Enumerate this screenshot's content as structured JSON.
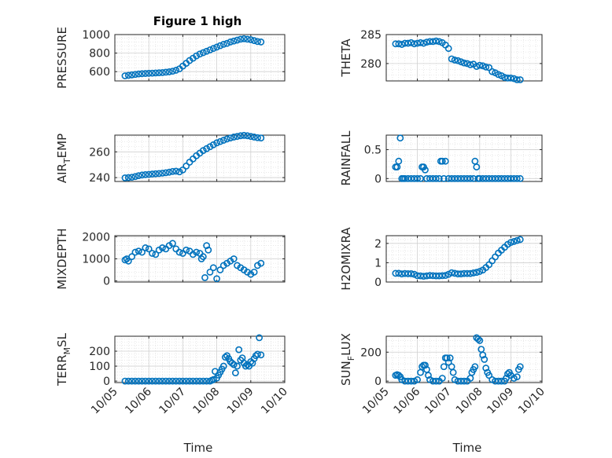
{
  "figure": {
    "title": "Figure 1 high",
    "xlabel": "Time",
    "x_ticks": [
      "10/05",
      "10/06",
      "10/07",
      "10/08",
      "10/09",
      "10/10"
    ],
    "marker_color": "#0072BD",
    "grid": true,
    "grid_minor": true
  },
  "chart_data": [
    {
      "id": "pressure",
      "type": "scatter",
      "ylabel": "PRESSURE",
      "ylim": [
        500,
        1000
      ],
      "yticks": [
        600,
        800,
        1000
      ],
      "xlim": [
        5.0,
        10.0
      ],
      "x": [
        5.3,
        5.4,
        5.5,
        5.6,
        5.7,
        5.8,
        5.9,
        6.0,
        6.1,
        6.2,
        6.3,
        6.4,
        6.5,
        6.6,
        6.7,
        6.8,
        6.9,
        7.0,
        7.1,
        7.2,
        7.3,
        7.4,
        7.5,
        7.6,
        7.7,
        7.8,
        7.9,
        8.0,
        8.1,
        8.2,
        8.3,
        8.4,
        8.5,
        8.6,
        8.7,
        8.8,
        8.9,
        9.0,
        9.1,
        9.2,
        9.3
      ],
      "y": [
        555,
        560,
        565,
        570,
        575,
        578,
        580,
        582,
        584,
        586,
        588,
        590,
        594,
        598,
        605,
        615,
        630,
        660,
        690,
        720,
        745,
        770,
        790,
        805,
        820,
        835,
        850,
        865,
        880,
        895,
        905,
        920,
        930,
        940,
        950,
        955,
        950,
        945,
        935,
        925,
        920
      ]
    },
    {
      "id": "theta",
      "type": "scatter",
      "ylabel": "THETA",
      "ylim": [
        277,
        285
      ],
      "yticks": [
        280,
        285
      ],
      "xlim": [
        5.0,
        10.0
      ],
      "x": [
        5.3,
        5.4,
        5.5,
        5.6,
        5.7,
        5.8,
        5.9,
        6.0,
        6.1,
        6.2,
        6.3,
        6.4,
        6.5,
        6.6,
        6.7,
        6.8,
        6.9,
        7.0,
        7.1,
        7.2,
        7.3,
        7.4,
        7.5,
        7.6,
        7.7,
        7.8,
        7.9,
        8.0,
        8.1,
        8.2,
        8.3,
        8.4,
        8.5,
        8.6,
        8.7,
        8.8,
        8.9,
        9.0,
        9.1,
        9.2,
        9.3
      ],
      "y": [
        283.4,
        283.4,
        283.3,
        283.5,
        283.5,
        283.6,
        283.4,
        283.5,
        283.6,
        283.5,
        283.7,
        283.8,
        283.8,
        283.9,
        283.8,
        283.6,
        283.2,
        282.6,
        280.8,
        280.6,
        280.5,
        280.3,
        280.1,
        280.0,
        279.8,
        279.9,
        279.5,
        279.7,
        279.6,
        279.4,
        279.3,
        278.6,
        278.4,
        278.1,
        277.9,
        277.6,
        277.5,
        277.5,
        277.4,
        277.2,
        277.2
      ]
    },
    {
      "id": "air_temp",
      "type": "scatter",
      "ylabel": "AIR_TEMP",
      "ylim": [
        237,
        273
      ],
      "yticks": [
        240,
        260
      ],
      "xlim": [
        5.0,
        10.0
      ],
      "x": [
        5.3,
        5.4,
        5.5,
        5.6,
        5.7,
        5.8,
        5.9,
        6.0,
        6.1,
        6.2,
        6.3,
        6.4,
        6.5,
        6.6,
        6.7,
        6.8,
        6.9,
        7.0,
        7.1,
        7.2,
        7.3,
        7.4,
        7.5,
        7.6,
        7.7,
        7.8,
        7.9,
        8.0,
        8.1,
        8.2,
        8.3,
        8.4,
        8.5,
        8.6,
        8.7,
        8.8,
        8.9,
        9.0,
        9.1,
        9.2,
        9.3
      ],
      "y": [
        239.8,
        240.0,
        240.3,
        240.8,
        241.5,
        242.0,
        242.3,
        242.5,
        242.8,
        243.0,
        243.2,
        243.5,
        243.8,
        244.2,
        244.8,
        245.0,
        244.5,
        246.0,
        249.0,
        252.0,
        254.5,
        257.0,
        259.0,
        261.0,
        262.5,
        264.0,
        265.5,
        267.0,
        268.0,
        269.0,
        270.0,
        270.8,
        271.5,
        272.0,
        272.5,
        272.8,
        272.5,
        272.0,
        271.5,
        271.0,
        270.8
      ]
    },
    {
      "id": "rainfall",
      "type": "scatter",
      "ylabel": "RAINFALL",
      "ylim": [
        -0.05,
        0.75
      ],
      "yticks": [
        0,
        0.5
      ],
      "xlim": [
        5.0,
        10.0
      ],
      "x": [
        5.3,
        5.35,
        5.4,
        5.45,
        5.5,
        5.55,
        5.6,
        5.7,
        5.8,
        5.9,
        6.0,
        6.1,
        6.15,
        6.2,
        6.25,
        6.3,
        6.4,
        6.5,
        6.6,
        6.7,
        6.75,
        6.8,
        6.85,
        6.9,
        7.0,
        7.1,
        7.2,
        7.3,
        7.4,
        7.5,
        7.6,
        7.7,
        7.8,
        7.85,
        7.9,
        7.95,
        8.0,
        8.1,
        8.2,
        8.3,
        8.4,
        8.5,
        8.6,
        8.7,
        8.8,
        8.9,
        9.0,
        9.1,
        9.2,
        9.3
      ],
      "y": [
        0.2,
        0.2,
        0.3,
        0.7,
        0.0,
        0.0,
        0.0,
        0.0,
        0.0,
        0.0,
        0.0,
        0.0,
        0.2,
        0.2,
        0.15,
        0.0,
        0.0,
        0.0,
        0.0,
        0.0,
        0.3,
        0.3,
        0.0,
        0.3,
        0.0,
        0.0,
        0.0,
        0.0,
        0.0,
        0.0,
        0.0,
        0.0,
        0.0,
        0.3,
        0.2,
        0.0,
        0.0,
        0.0,
        0.0,
        0.0,
        0.0,
        0.0,
        0.0,
        0.0,
        0.0,
        0.0,
        0.0,
        0.0,
        0.0,
        0.0
      ]
    },
    {
      "id": "mixdepth",
      "type": "scatter",
      "ylabel": "MIXDEPTH",
      "ylim": [
        -50,
        2050
      ],
      "yticks": [
        0,
        1000,
        2000
      ],
      "xlim": [
        5.0,
        10.0
      ],
      "x": [
        5.3,
        5.35,
        5.4,
        5.5,
        5.6,
        5.7,
        5.8,
        5.9,
        6.0,
        6.1,
        6.2,
        6.3,
        6.4,
        6.5,
        6.6,
        6.7,
        6.8,
        6.9,
        7.0,
        7.1,
        7.2,
        7.3,
        7.4,
        7.5,
        7.55,
        7.6,
        7.65,
        7.7,
        7.75,
        7.8,
        7.9,
        8.0,
        8.1,
        8.2,
        8.3,
        8.4,
        8.5,
        8.6,
        8.7,
        8.8,
        8.9,
        9.0,
        9.1,
        9.2,
        9.3
      ],
      "y": [
        950,
        1000,
        900,
        1100,
        1300,
        1350,
        1300,
        1500,
        1450,
        1250,
        1200,
        1400,
        1500,
        1450,
        1600,
        1700,
        1450,
        1300,
        1250,
        1400,
        1350,
        1200,
        1300,
        1250,
        1000,
        1100,
        150,
        1600,
        1400,
        400,
        600,
        100,
        500,
        700,
        800,
        900,
        1000,
        700,
        600,
        500,
        400,
        300,
        400,
        700,
        800
      ]
    },
    {
      "id": "h2omixra",
      "type": "scatter",
      "ylabel": "H2OMIXRA",
      "ylim": [
        0,
        2.4
      ],
      "yticks": [
        0,
        1,
        2
      ],
      "xlim": [
        5.0,
        10.0
      ],
      "x": [
        5.3,
        5.4,
        5.5,
        5.6,
        5.7,
        5.8,
        5.9,
        6.0,
        6.1,
        6.2,
        6.3,
        6.4,
        6.5,
        6.6,
        6.7,
        6.8,
        6.9,
        7.0,
        7.1,
        7.2,
        7.3,
        7.4,
        7.5,
        7.6,
        7.7,
        7.8,
        7.9,
        8.0,
        8.1,
        8.2,
        8.3,
        8.4,
        8.5,
        8.6,
        8.7,
        8.8,
        8.9,
        9.0,
        9.1,
        9.2,
        9.3
      ],
      "y": [
        0.45,
        0.45,
        0.42,
        0.44,
        0.43,
        0.43,
        0.4,
        0.33,
        0.32,
        0.3,
        0.32,
        0.34,
        0.33,
        0.32,
        0.32,
        0.33,
        0.34,
        0.4,
        0.48,
        0.45,
        0.42,
        0.42,
        0.44,
        0.44,
        0.44,
        0.47,
        0.5,
        0.55,
        0.62,
        0.75,
        0.9,
        1.1,
        1.3,
        1.5,
        1.65,
        1.8,
        1.95,
        2.05,
        2.1,
        2.15,
        2.2
      ]
    },
    {
      "id": "terr_msl",
      "type": "scatter",
      "ylabel": "TERR_MSL",
      "ylim": [
        -10,
        300
      ],
      "yticks": [
        0,
        100,
        200
      ],
      "xlim": [
        5.0,
        10.0
      ],
      "x": [
        5.3,
        5.4,
        5.5,
        5.6,
        5.7,
        5.8,
        5.9,
        6.0,
        6.1,
        6.2,
        6.3,
        6.4,
        6.5,
        6.6,
        6.7,
        6.8,
        6.9,
        7.0,
        7.1,
        7.2,
        7.3,
        7.4,
        7.5,
        7.6,
        7.7,
        7.8,
        7.85,
        7.9,
        7.95,
        8.0,
        8.05,
        8.1,
        8.15,
        8.2,
        8.25,
        8.3,
        8.35,
        8.4,
        8.45,
        8.5,
        8.55,
        8.6,
        8.65,
        8.7,
        8.75,
        8.8,
        8.85,
        8.9,
        8.95,
        9.0,
        9.05,
        9.1,
        9.15,
        9.2,
        9.25,
        9.3
      ],
      "y": [
        0,
        0,
        0,
        0,
        0,
        0,
        0,
        0,
        0,
        0,
        0,
        0,
        0,
        0,
        0,
        0,
        0,
        0,
        0,
        0,
        0,
        0,
        0,
        0,
        0,
        0,
        5,
        10,
        65,
        20,
        40,
        60,
        80,
        100,
        160,
        170,
        150,
        130,
        120,
        110,
        55,
        100,
        210,
        140,
        155,
        120,
        100,
        110,
        100,
        130,
        120,
        150,
        170,
        180,
        290,
        175
      ]
    },
    {
      "id": "sun_flux",
      "type": "scatter",
      "ylabel": "SUN_FLUX",
      "ylim": [
        -10,
        310
      ],
      "yticks": [
        0,
        200
      ],
      "xlim": [
        5.0,
        10.0
      ],
      "x": [
        5.3,
        5.35,
        5.4,
        5.45,
        5.5,
        5.6,
        5.7,
        5.8,
        5.9,
        6.0,
        6.1,
        6.15,
        6.2,
        6.25,
        6.3,
        6.35,
        6.4,
        6.5,
        6.6,
        6.7,
        6.8,
        6.85,
        6.9,
        6.95,
        7.0,
        7.05,
        7.1,
        7.15,
        7.2,
        7.3,
        7.4,
        7.5,
        7.6,
        7.7,
        7.75,
        7.8,
        7.85,
        7.9,
        7.95,
        8.0,
        8.05,
        8.1,
        8.15,
        8.2,
        8.25,
        8.3,
        8.4,
        8.5,
        8.6,
        8.7,
        8.8,
        8.85,
        8.9,
        8.95,
        9.0,
        9.1,
        9.2,
        9.25,
        9.3
      ],
      "y": [
        40,
        45,
        40,
        30,
        10,
        0,
        0,
        0,
        0,
        10,
        60,
        100,
        110,
        110,
        80,
        40,
        10,
        0,
        0,
        0,
        20,
        100,
        160,
        160,
        130,
        160,
        100,
        60,
        10,
        0,
        0,
        0,
        0,
        20,
        60,
        80,
        100,
        300,
        290,
        280,
        220,
        180,
        150,
        90,
        60,
        40,
        10,
        0,
        0,
        0,
        0,
        20,
        50,
        60,
        40,
        20,
        30,
        80,
        100
      ]
    }
  ]
}
